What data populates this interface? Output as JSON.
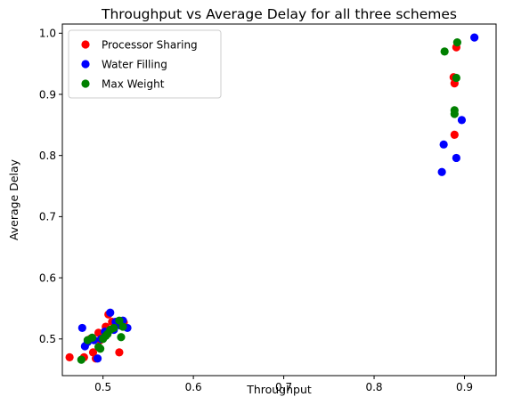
{
  "chart_data": {
    "type": "scatter",
    "title": "Throughput vs Average Delay for all three schemes",
    "xlabel": "Throughput",
    "ylabel": "Average Delay",
    "xlim": [
      0.455,
      0.935
    ],
    "ylim": [
      0.44,
      1.015
    ],
    "xticks": [
      {
        "value": 0.5,
        "label": "0.5"
      },
      {
        "value": 0.6,
        "label": "0.6"
      },
      {
        "value": 0.7,
        "label": "0.7"
      },
      {
        "value": 0.8,
        "label": "0.8"
      },
      {
        "value": 0.9,
        "label": "0.9"
      }
    ],
    "yticks": [
      {
        "value": 0.5,
        "label": "0.5"
      },
      {
        "value": 0.6,
        "label": "0.6"
      },
      {
        "value": 0.7,
        "label": "0.7"
      },
      {
        "value": 0.8,
        "label": "0.8"
      },
      {
        "value": 0.9,
        "label": "0.9"
      },
      {
        "value": 1.0,
        "label": "1.0"
      }
    ],
    "grid": false,
    "legend_position": "top-left",
    "series": [
      {
        "name": "Processor Sharing",
        "color": "#ff0000",
        "points": [
          {
            "x": 0.463,
            "y": 0.47
          },
          {
            "x": 0.479,
            "y": 0.47
          },
          {
            "x": 0.486,
            "y": 0.5
          },
          {
            "x": 0.489,
            "y": 0.478
          },
          {
            "x": 0.492,
            "y": 0.468
          },
          {
            "x": 0.495,
            "y": 0.51
          },
          {
            "x": 0.497,
            "y": 0.498
          },
          {
            "x": 0.5,
            "y": 0.505
          },
          {
            "x": 0.503,
            "y": 0.52
          },
          {
            "x": 0.506,
            "y": 0.54
          },
          {
            "x": 0.51,
            "y": 0.528
          },
          {
            "x": 0.513,
            "y": 0.522
          },
          {
            "x": 0.518,
            "y": 0.478
          },
          {
            "x": 0.523,
            "y": 0.527
          },
          {
            "x": 0.888,
            "y": 0.928
          },
          {
            "x": 0.889,
            "y": 0.834
          },
          {
            "x": 0.889,
            "y": 0.918
          },
          {
            "x": 0.891,
            "y": 0.977
          }
        ]
      },
      {
        "name": "Water Filling",
        "color": "#0000ff",
        "points": [
          {
            "x": 0.477,
            "y": 0.518
          },
          {
            "x": 0.48,
            "y": 0.488
          },
          {
            "x": 0.483,
            "y": 0.495
          },
          {
            "x": 0.49,
            "y": 0.498
          },
          {
            "x": 0.494,
            "y": 0.468
          },
          {
            "x": 0.498,
            "y": 0.5
          },
          {
            "x": 0.502,
            "y": 0.512
          },
          {
            "x": 0.508,
            "y": 0.543
          },
          {
            "x": 0.512,
            "y": 0.515
          },
          {
            "x": 0.514,
            "y": 0.528
          },
          {
            "x": 0.519,
            "y": 0.522
          },
          {
            "x": 0.522,
            "y": 0.53
          },
          {
            "x": 0.527,
            "y": 0.518
          },
          {
            "x": 0.875,
            "y": 0.773
          },
          {
            "x": 0.877,
            "y": 0.818
          },
          {
            "x": 0.891,
            "y": 0.796
          },
          {
            "x": 0.897,
            "y": 0.858
          },
          {
            "x": 0.911,
            "y": 0.993
          }
        ]
      },
      {
        "name": "Max Weight",
        "color": "#008000",
        "points": [
          {
            "x": 0.476,
            "y": 0.466
          },
          {
            "x": 0.483,
            "y": 0.498
          },
          {
            "x": 0.488,
            "y": 0.502
          },
          {
            "x": 0.495,
            "y": 0.487
          },
          {
            "x": 0.497,
            "y": 0.484
          },
          {
            "x": 0.5,
            "y": 0.5
          },
          {
            "x": 0.503,
            "y": 0.505
          },
          {
            "x": 0.505,
            "y": 0.508
          },
          {
            "x": 0.508,
            "y": 0.515
          },
          {
            "x": 0.512,
            "y": 0.518
          },
          {
            "x": 0.518,
            "y": 0.53
          },
          {
            "x": 0.52,
            "y": 0.503
          },
          {
            "x": 0.522,
            "y": 0.52
          },
          {
            "x": 0.878,
            "y": 0.97
          },
          {
            "x": 0.889,
            "y": 0.868
          },
          {
            "x": 0.889,
            "y": 0.874
          },
          {
            "x": 0.891,
            "y": 0.927
          },
          {
            "x": 0.892,
            "y": 0.985
          }
        ]
      }
    ]
  }
}
